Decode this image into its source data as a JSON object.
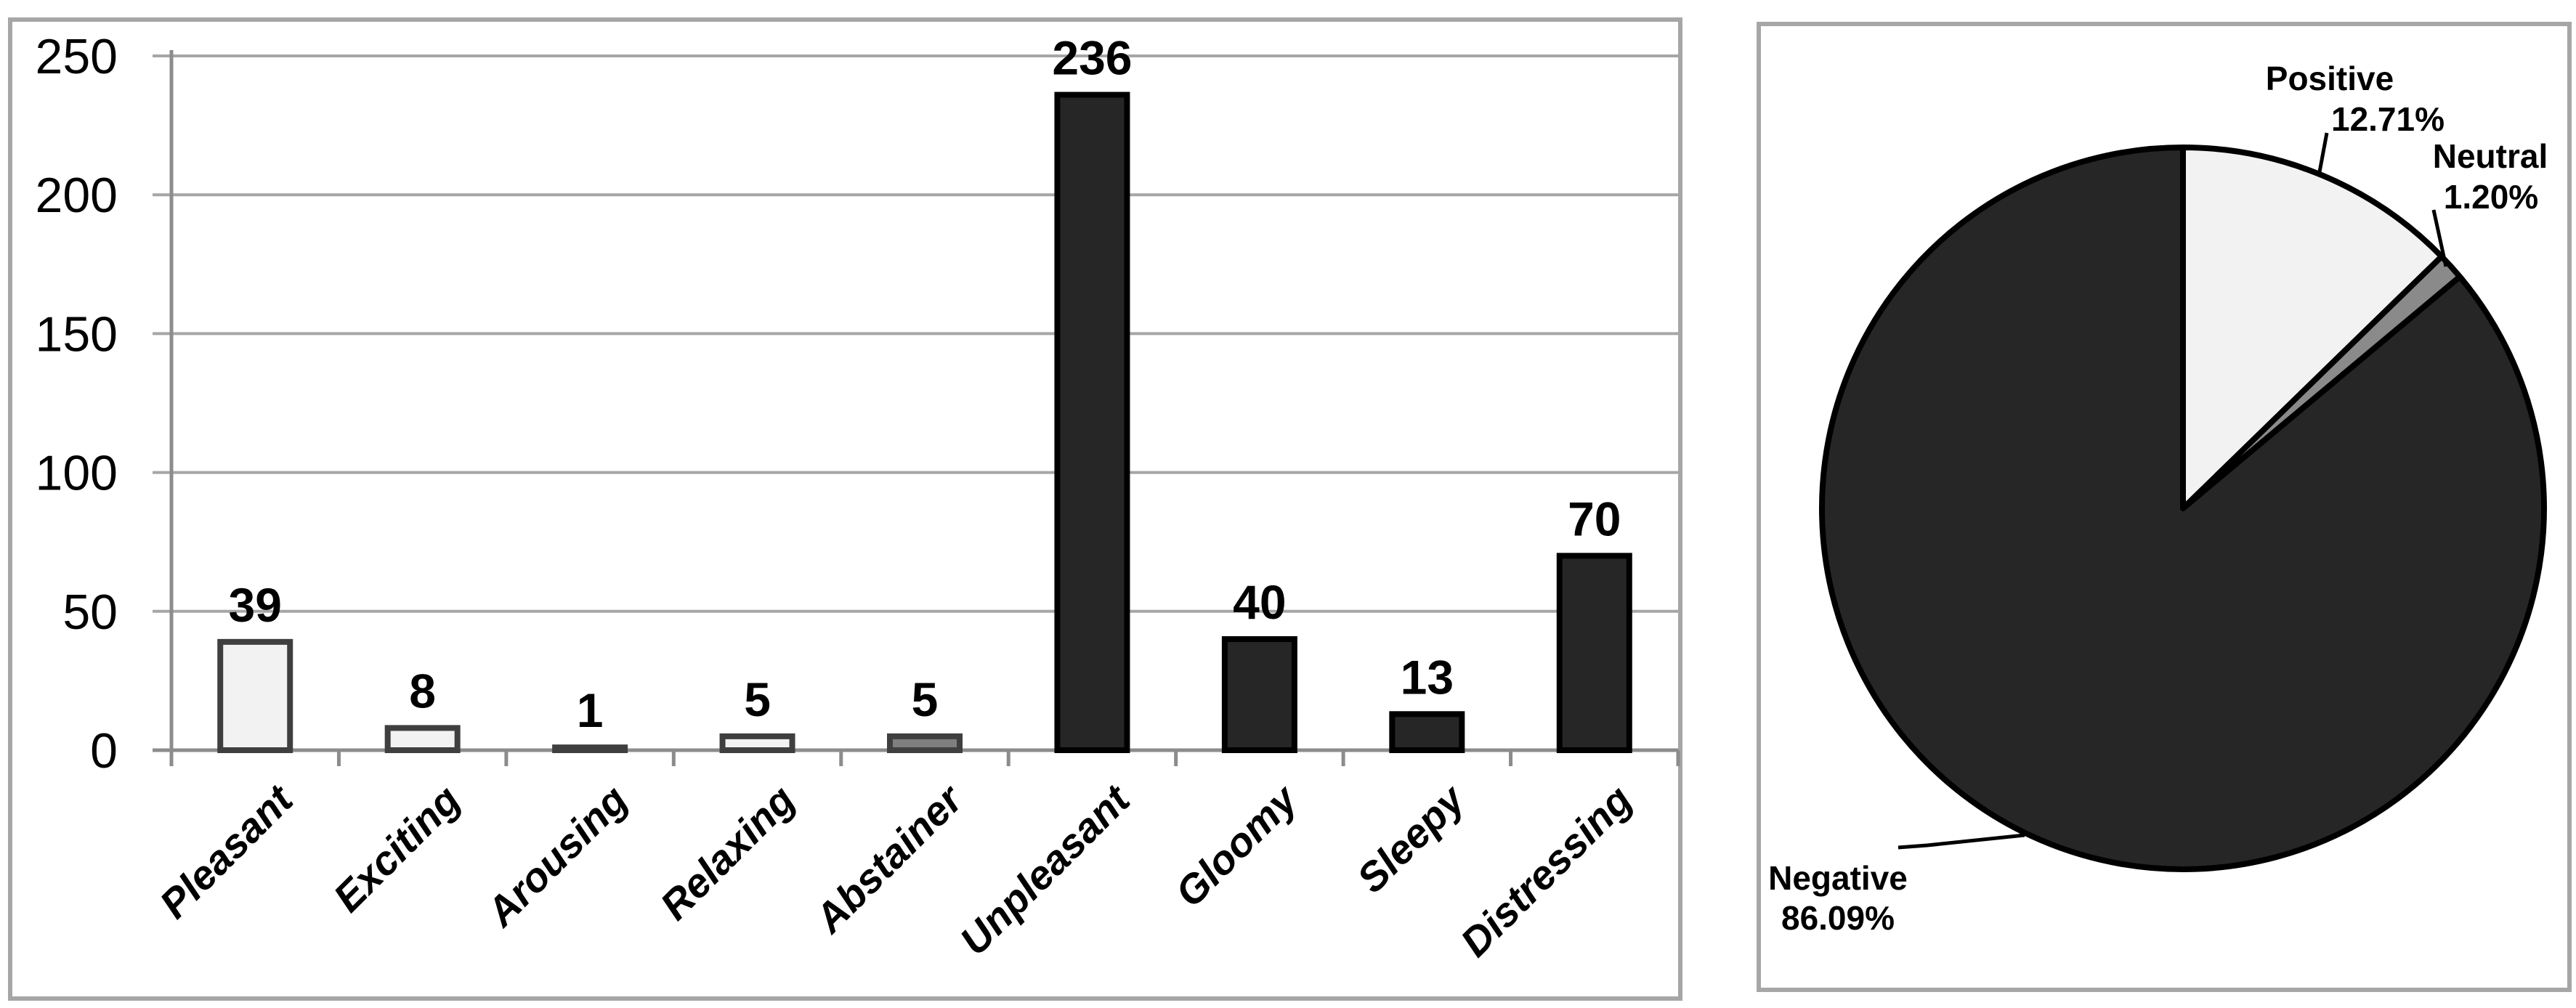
{
  "figure": {
    "description": "Two-panel monochrome Excel-style figure: bar chart of mood categories and pie chart of sentiment share",
    "background": "#ffffff",
    "panel_border_color": "#a6a6a6"
  },
  "colors": {
    "light_fill": "#f2f2f2",
    "mid_gray_fill": "#7f7f7f",
    "dark_fill": "#262626",
    "light_bar_border": "#3f3f3f",
    "dark_bar_border": "#000000",
    "gridline": "#a6a6a6",
    "axis": "#8c8c8c",
    "pie_stroke": "#000000",
    "leader_line": "#000000"
  },
  "chart_data": [
    {
      "type": "bar",
      "title": "",
      "xlabel": "",
      "ylabel": "",
      "categories": [
        "Pleasant",
        "Exciting",
        "Arousing",
        "Relaxing",
        "Abstainer",
        "Unpleasant",
        "Gloomy",
        "Sleepy",
        "Distressing"
      ],
      "values": [
        39,
        8,
        1,
        5,
        5,
        236,
        40,
        13,
        70
      ],
      "bar_styles": [
        {
          "fill": "#f2f2f2",
          "stroke": "#3f3f3f"
        },
        {
          "fill": "#f2f2f2",
          "stroke": "#3f3f3f"
        },
        {
          "fill": "#f2f2f2",
          "stroke": "#3f3f3f"
        },
        {
          "fill": "#f2f2f2",
          "stroke": "#3f3f3f"
        },
        {
          "fill": "#7f7f7f",
          "stroke": "#3f3f3f"
        },
        {
          "fill": "#262626",
          "stroke": "#000000"
        },
        {
          "fill": "#262626",
          "stroke": "#000000"
        },
        {
          "fill": "#262626",
          "stroke": "#000000"
        },
        {
          "fill": "#262626",
          "stroke": "#000000"
        }
      ],
      "ylim": [
        0,
        250
      ],
      "yticks": [
        0,
        50,
        100,
        150,
        200,
        250
      ],
      "grid": true,
      "legend": "none",
      "value_labels": "outside-end",
      "category_label_rotation_deg": -45
    },
    {
      "type": "pie",
      "title": "",
      "start_angle_deg": 0,
      "direction": "clockwise",
      "legend": "none",
      "slices": [
        {
          "label": "Positive",
          "pct_label": "12.71%",
          "value": 12.71,
          "fill": "#f2f2f2"
        },
        {
          "label": "Neutral",
          "pct_label": "1.20%",
          "value": 1.2,
          "fill": "#8a8a8a"
        },
        {
          "label": "Negative",
          "pct_label": "86.09%",
          "value": 86.09,
          "fill": "#262626"
        }
      ]
    }
  ]
}
